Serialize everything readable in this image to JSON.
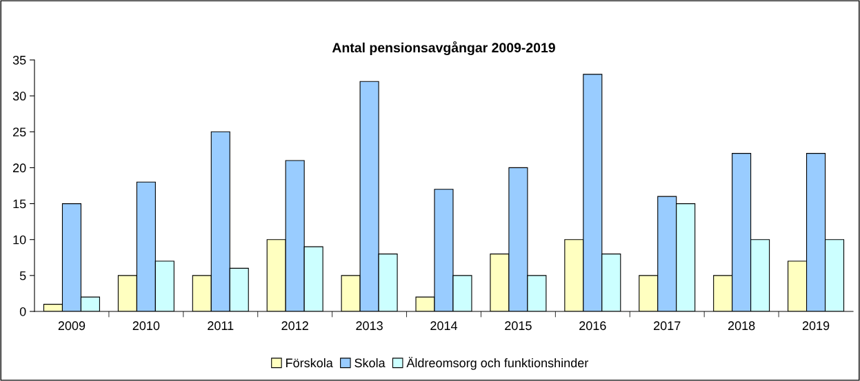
{
  "chart_data": {
    "type": "bar",
    "title": "Antal pensionsavgångar 2009-2019",
    "categories": [
      "2009",
      "2010",
      "2011",
      "2012",
      "2013",
      "2014",
      "2015",
      "2016",
      "2017",
      "2018",
      "2019"
    ],
    "series": [
      {
        "name": "Förskola",
        "color": "#ffffc0",
        "values": [
          1,
          5,
          5,
          10,
          5,
          2,
          8,
          10,
          5,
          5,
          7
        ]
      },
      {
        "name": "Skola",
        "color": "#99ccff",
        "values": [
          15,
          18,
          25,
          21,
          32,
          17,
          20,
          33,
          16,
          22,
          22
        ]
      },
      {
        "name": "Äldreomsorg och funktionshinder",
        "color": "#ccffff",
        "values": [
          2,
          7,
          6,
          9,
          8,
          5,
          5,
          8,
          15,
          10,
          10
        ]
      }
    ],
    "ylim": [
      0,
      35
    ],
    "yticks": [
      0,
      5,
      10,
      15,
      20,
      25,
      30,
      35
    ],
    "grid": false,
    "legend": "bottom"
  }
}
